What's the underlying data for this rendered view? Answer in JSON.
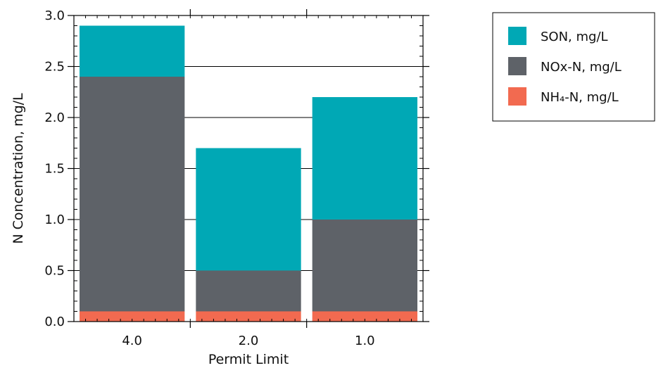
{
  "chart_data": {
    "type": "bar",
    "stacked": true,
    "categories": [
      "4.0",
      "2.0",
      "1.0"
    ],
    "series": [
      {
        "name": "NH₄-N, mg/L",
        "values": [
          0.1,
          0.1,
          0.1
        ],
        "color": "#f26a50"
      },
      {
        "name": "NOx-N, mg/L",
        "values": [
          2.3,
          0.4,
          0.9
        ],
        "color": "#5e6268"
      },
      {
        "name": "SON, mg/L",
        "values": [
          0.5,
          1.2,
          1.2
        ],
        "color": "#00a8b5"
      }
    ],
    "legend_order": [
      "SON, mg/L",
      "NOx-N, mg/L",
      "NH₄-N, mg/L"
    ],
    "xlabel": "Permit Limit",
    "ylabel": "N Concentration, mg/L",
    "ylim": [
      0,
      3.0
    ],
    "yticks": [
      "0.0",
      "0.5",
      "1.0",
      "1.5",
      "2.0",
      "2.5",
      "3.0"
    ],
    "grid": true,
    "legend_position": "top-right"
  }
}
